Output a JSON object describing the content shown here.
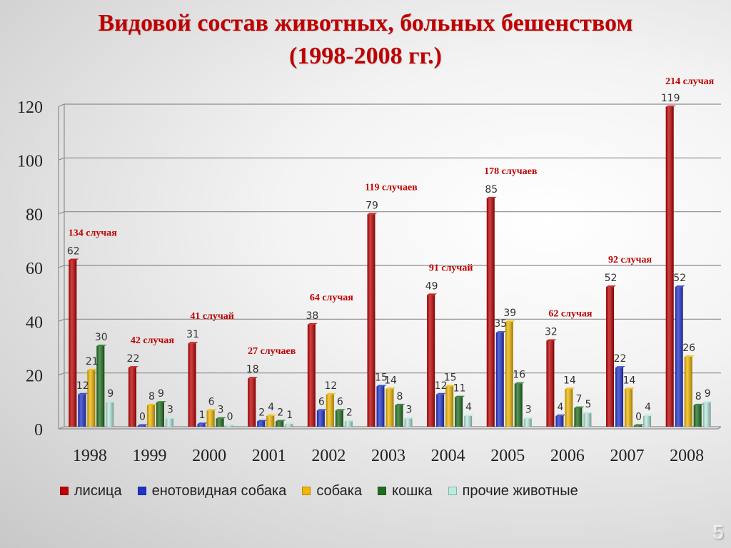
{
  "title": {
    "line1": "Видовой состав животных, больных бешенством",
    "line2": "(1998-2008 гг.)"
  },
  "chart_data": {
    "type": "bar",
    "categories": [
      "1998",
      "1999",
      "2000",
      "2001",
      "2002",
      "2003",
      "2004",
      "2005",
      "2006",
      "2007",
      "2008"
    ],
    "ylim": [
      0,
      120
    ],
    "yticks": [
      0,
      20,
      40,
      60,
      80,
      100,
      120
    ],
    "grid": true,
    "legend_position": "bottom",
    "series": [
      {
        "name": "лисица",
        "color": "#c00000",
        "values": [
          62,
          22,
          31,
          18,
          38,
          79,
          49,
          85,
          32,
          52,
          119
        ]
      },
      {
        "name": "енотовидная собака",
        "color": "#2233cc",
        "values": [
          12,
          0,
          1,
          2,
          6,
          15,
          12,
          35,
          4,
          22,
          52
        ]
      },
      {
        "name": "собака",
        "color": "#f2b800",
        "values": [
          21,
          8,
          6,
          4,
          12,
          14,
          15,
          39,
          14,
          14,
          26
        ]
      },
      {
        "name": "кошка",
        "color": "#1f6e1f",
        "values": [
          30,
          9,
          3,
          2,
          6,
          8,
          11,
          16,
          7,
          0,
          8
        ]
      },
      {
        "name": "прочие животные",
        "color": "#b8ece0",
        "values": [
          9,
          3,
          0,
          1,
          2,
          3,
          4,
          3,
          5,
          4,
          9
        ]
      }
    ],
    "annotations": [
      "134 случая",
      "42 случая",
      "41 случай",
      "27 случаев",
      "64 случая",
      "119 случаев",
      "91 случай",
      "178 случаев",
      "62 случая",
      "92 случая",
      "214 случая"
    ]
  },
  "page_number": "5"
}
